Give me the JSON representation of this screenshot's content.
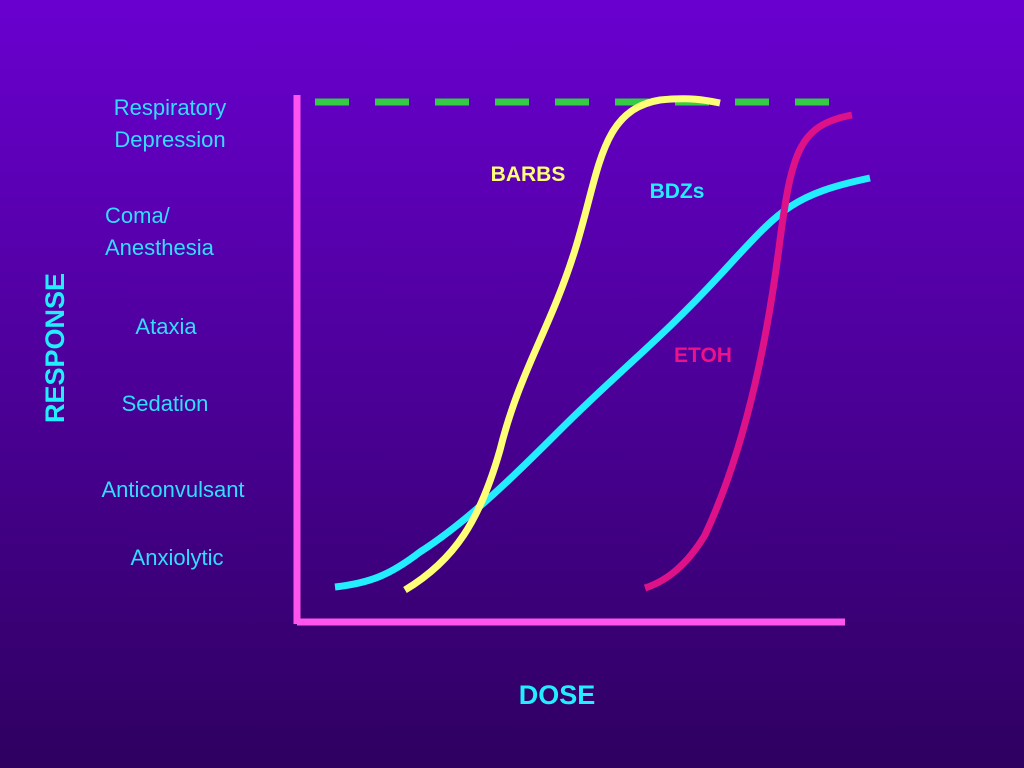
{
  "title_axes": {
    "y_label": "RESPONSE",
    "x_label": "DOSE"
  },
  "levels": [
    [
      "Respiratory",
      "Depression"
    ],
    [
      "Coma/",
      "Anesthesia"
    ],
    [
      "Ataxia"
    ],
    [
      "Sedation"
    ],
    [
      "Anticonvulsant"
    ],
    [
      "Anxiolytic"
    ]
  ],
  "curves": [
    "BARBS",
    "BDZs",
    "ETOH"
  ]
}
